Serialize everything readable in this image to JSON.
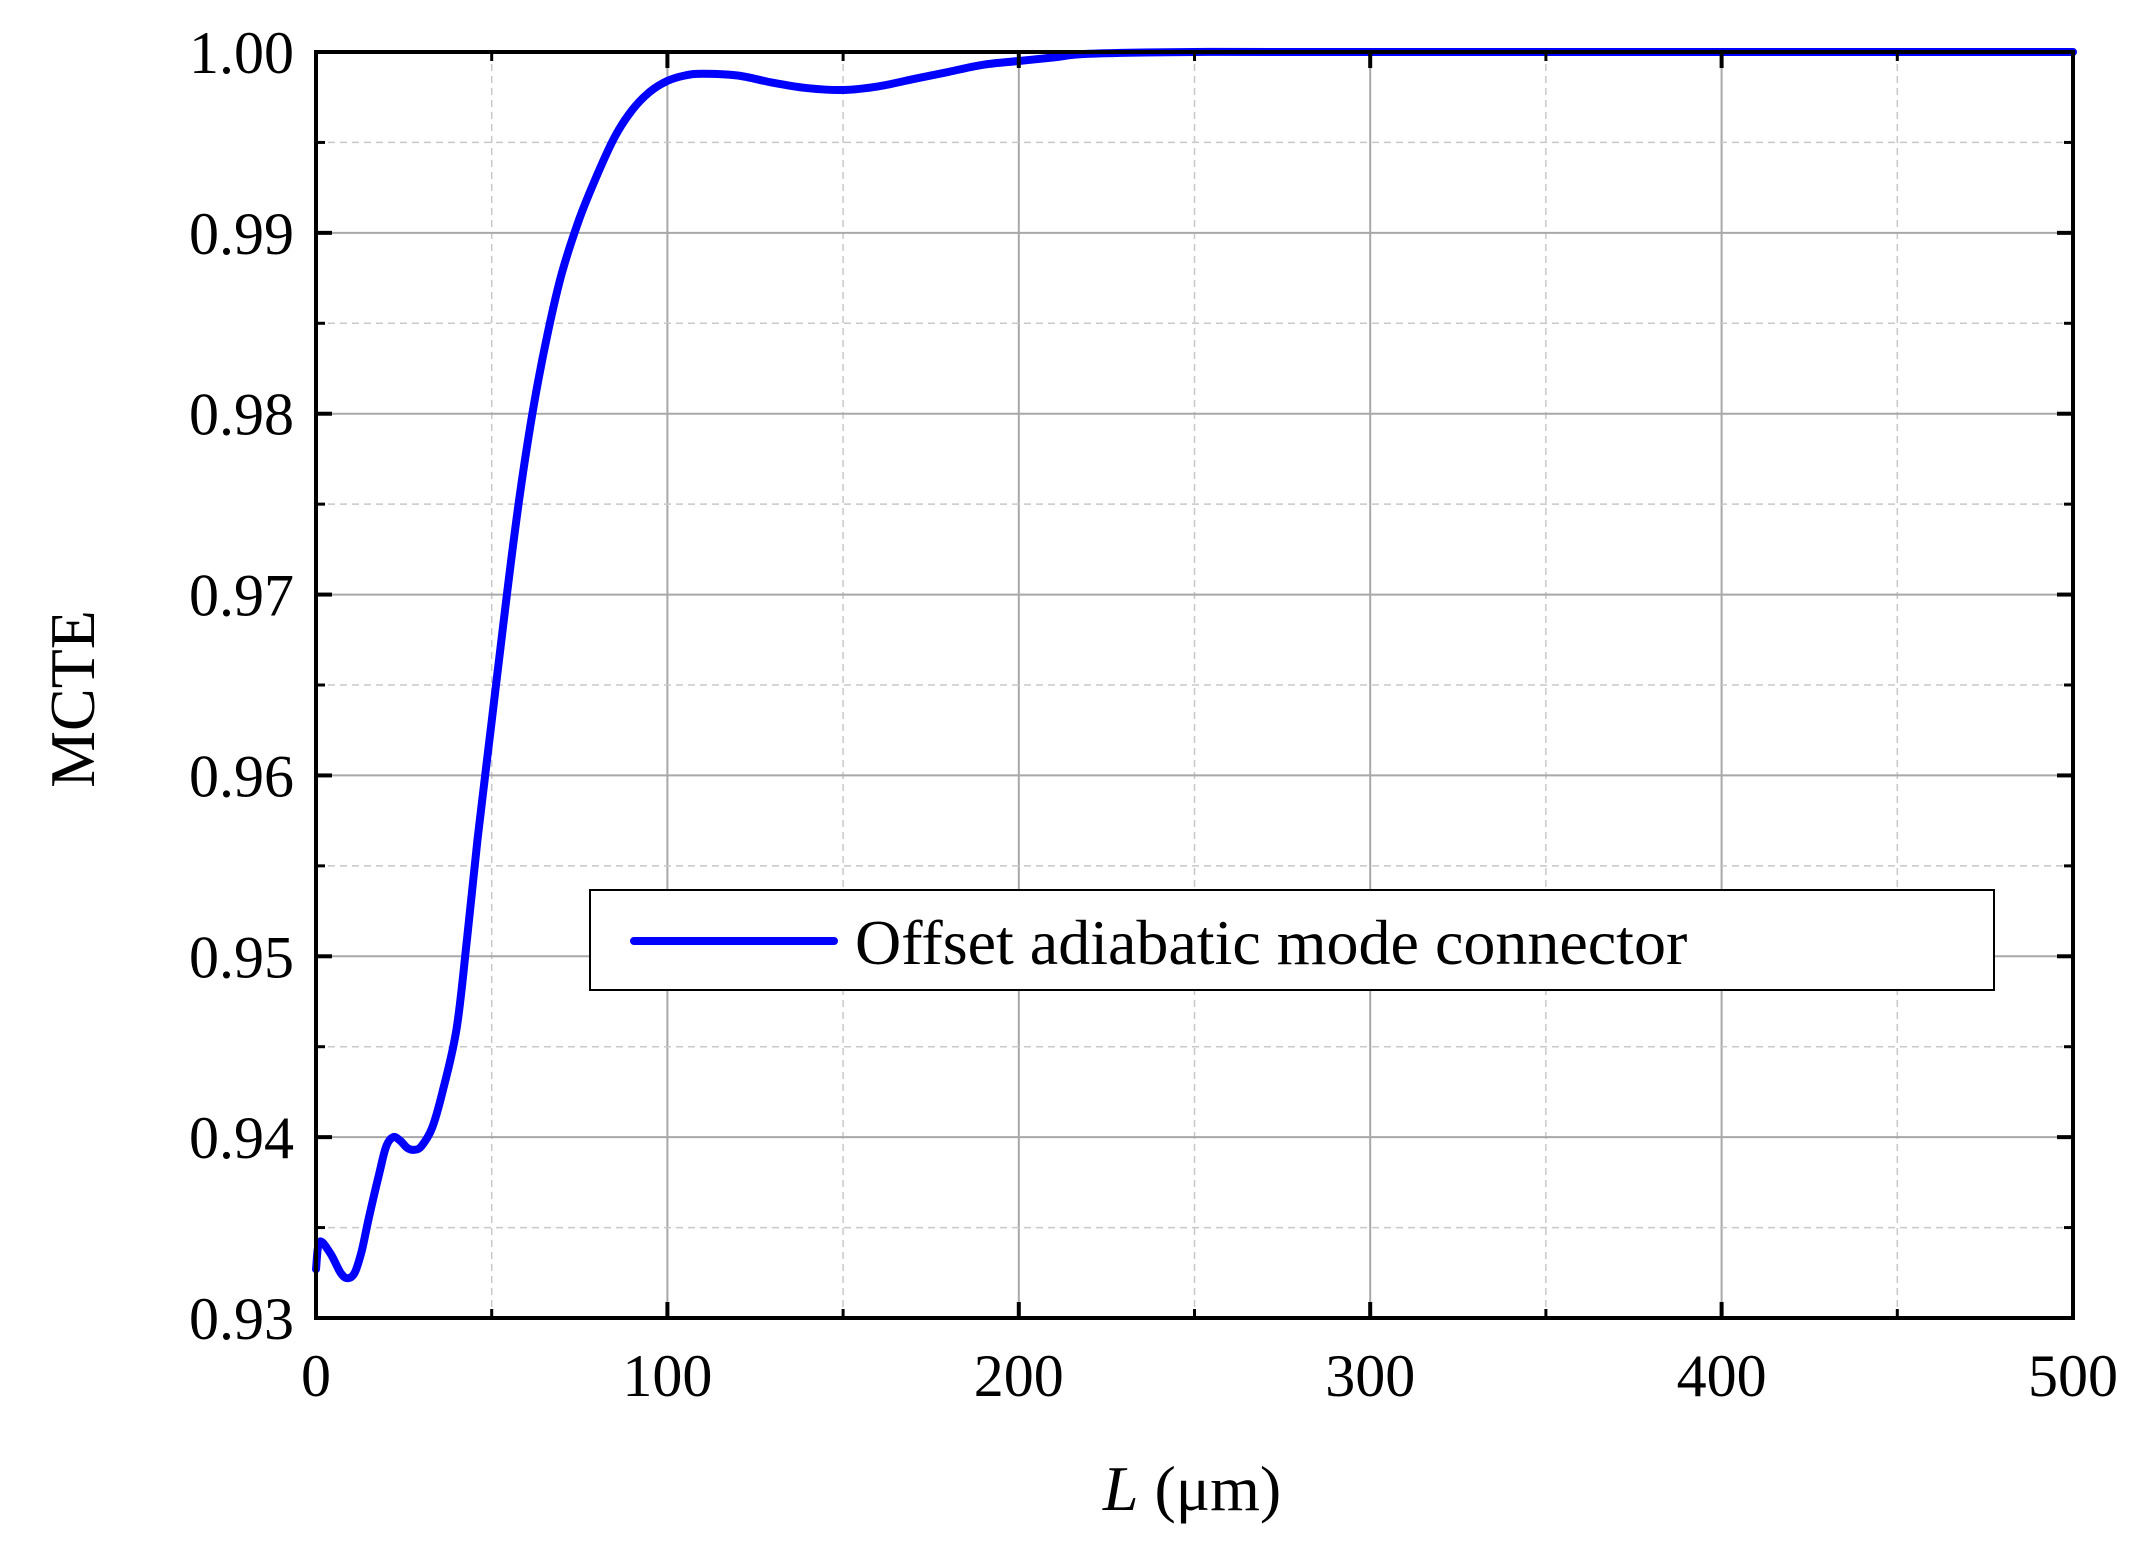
{
  "chart_data": {
    "type": "line",
    "title": "",
    "xlabel_italic": "L",
    "xlabel_unit": " (μm)",
    "ylabel": "MCTE",
    "xlim": [
      0,
      500
    ],
    "ylim": [
      0.93,
      1.0
    ],
    "x_ticks": [
      0,
      100,
      200,
      300,
      400,
      500
    ],
    "x_tick_labels": [
      "0",
      "100",
      "200",
      "300",
      "400",
      "500"
    ],
    "y_ticks": [
      0.93,
      0.94,
      0.95,
      0.96,
      0.97,
      0.98,
      0.99,
      1.0
    ],
    "y_tick_labels": [
      "0.93",
      "0.94",
      "0.95",
      "0.96",
      "0.97",
      "0.98",
      "0.99",
      "1.00"
    ],
    "grid": true,
    "legend_position": "center-right",
    "series": [
      {
        "name": "Offset adiabatic mode connector",
        "color": "#0000ff",
        "points": [
          [
            0,
            0.9327
          ],
          [
            1,
            0.9342
          ],
          [
            4,
            0.9336
          ],
          [
            7,
            0.9325
          ],
          [
            9,
            0.9322
          ],
          [
            11,
            0.9325
          ],
          [
            13,
            0.9337
          ],
          [
            15,
            0.9355
          ],
          [
            18,
            0.938
          ],
          [
            20,
            0.9395
          ],
          [
            22,
            0.94
          ],
          [
            24,
            0.9398
          ],
          [
            26,
            0.9394
          ],
          [
            28,
            0.9393
          ],
          [
            30,
            0.9395
          ],
          [
            33,
            0.9405
          ],
          [
            36,
            0.9425
          ],
          [
            40,
            0.946
          ],
          [
            43,
            0.951
          ],
          [
            46,
            0.9565
          ],
          [
            50,
            0.963
          ],
          [
            54,
            0.9695
          ],
          [
            58,
            0.9755
          ],
          [
            62,
            0.9805
          ],
          [
            66,
            0.9845
          ],
          [
            70,
            0.9878
          ],
          [
            75,
            0.9908
          ],
          [
            80,
            0.9932
          ],
          [
            85,
            0.9953
          ],
          [
            90,
            0.9968
          ],
          [
            95,
            0.9978
          ],
          [
            100,
            0.9984
          ],
          [
            105,
            0.9987
          ],
          [
            110,
            0.9988
          ],
          [
            120,
            0.9987
          ],
          [
            130,
            0.9983
          ],
          [
            140,
            0.998
          ],
          [
            150,
            0.9979
          ],
          [
            160,
            0.9981
          ],
          [
            170,
            0.9985
          ],
          [
            180,
            0.9989
          ],
          [
            190,
            0.9993
          ],
          [
            200,
            0.9995
          ],
          [
            210,
            0.9997
          ],
          [
            220,
            0.9999
          ],
          [
            250,
            1.0
          ],
          [
            300,
            1.0
          ],
          [
            400,
            1.0
          ],
          [
            500,
            1.0
          ]
        ]
      }
    ]
  }
}
